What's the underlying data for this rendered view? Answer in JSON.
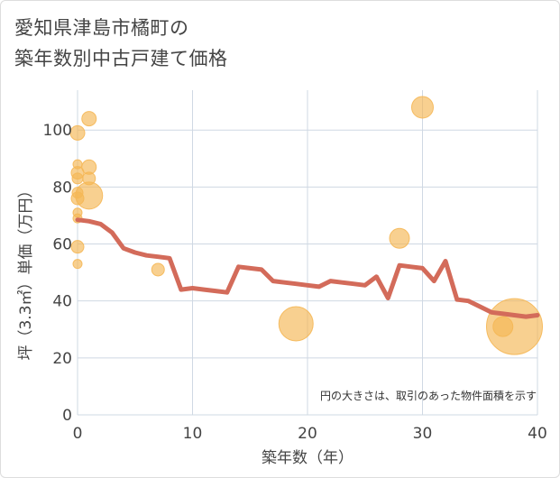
{
  "title_line1": "愛知県津島市橘町の",
  "title_line2": "築年数別中古戸建て価格",
  "chart_data": {
    "type": "scatter",
    "title": "愛知県津島市橘町の築年数別中古戸建て価格",
    "xlabel": "築年数（年）",
    "ylabel": "坪（3.3㎡）単価（万円）",
    "xlim": [
      0,
      40
    ],
    "ylim": [
      0,
      114
    ],
    "xticks": [
      0,
      10,
      20,
      30,
      40
    ],
    "yticks": [
      0,
      20,
      40,
      60,
      80,
      100
    ],
    "grid": true,
    "note": "円の大きさは、取引のあった物件面積を示す",
    "colors": {
      "bubble": "#f5b755",
      "line": "#d36b5a"
    },
    "bubbles": [
      {
        "x": 0,
        "y": 99,
        "size": 8
      },
      {
        "x": 0,
        "y": 88,
        "size": 5
      },
      {
        "x": 0,
        "y": 85,
        "size": 7
      },
      {
        "x": 0,
        "y": 83,
        "size": 6
      },
      {
        "x": 0,
        "y": 78,
        "size": 6
      },
      {
        "x": 0,
        "y": 76,
        "size": 7
      },
      {
        "x": 0,
        "y": 71,
        "size": 5
      },
      {
        "x": 0,
        "y": 69,
        "size": 5
      },
      {
        "x": 0,
        "y": 59,
        "size": 7
      },
      {
        "x": 0,
        "y": 53,
        "size": 5
      },
      {
        "x": 1,
        "y": 104,
        "size": 8
      },
      {
        "x": 1,
        "y": 87,
        "size": 8
      },
      {
        "x": 1,
        "y": 83,
        "size": 7
      },
      {
        "x": 1,
        "y": 77,
        "size": 15
      },
      {
        "x": 7,
        "y": 51,
        "size": 7
      },
      {
        "x": 19,
        "y": 32,
        "size": 19
      },
      {
        "x": 28,
        "y": 62,
        "size": 11
      },
      {
        "x": 30,
        "y": 108,
        "size": 12
      },
      {
        "x": 37,
        "y": 31,
        "size": 11
      },
      {
        "x": 38,
        "y": 31,
        "size": 31
      }
    ],
    "trend": {
      "x": [
        0,
        1,
        2,
        3,
        4,
        5,
        6,
        7,
        8,
        9,
        10,
        11,
        12,
        13,
        14,
        15,
        16,
        17,
        18,
        19,
        20,
        21,
        22,
        23,
        24,
        25,
        26,
        27,
        28,
        29,
        30,
        31,
        32,
        33,
        34,
        35,
        36,
        37,
        38,
        39,
        40
      ],
      "y": [
        68.5,
        68,
        67,
        64,
        58.5,
        57,
        56,
        55.5,
        55,
        44,
        44.5,
        44,
        43.5,
        43,
        52,
        51.5,
        51,
        47,
        46.5,
        46,
        45.5,
        45,
        47,
        46.5,
        46,
        45.5,
        48.5,
        41,
        52.5,
        52,
        51.5,
        47,
        54,
        40.5,
        40,
        38,
        36,
        35.5,
        35,
        34.5,
        35
      ]
    }
  }
}
